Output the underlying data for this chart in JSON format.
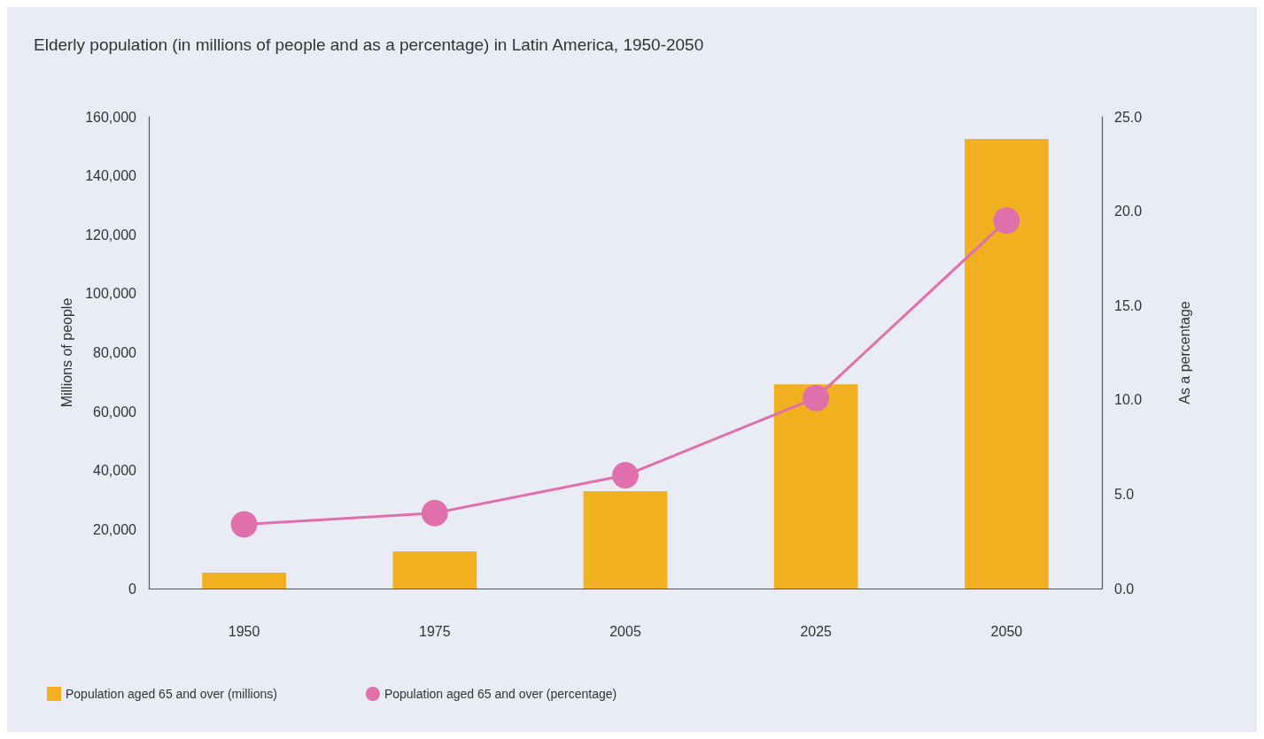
{
  "chart_data": {
    "type": "bar",
    "title": "Elderly population (in millions of people and as a percentage) in Latin America, 1950-2050",
    "categories": [
      "1950",
      "1975",
      "2005",
      "2025",
      "2050"
    ],
    "series": [
      {
        "name": "Population aged 65 and over (millions)",
        "color": "#f0b020",
        "values": [
          5400,
          12600,
          33000,
          69300,
          152500
        ]
      },
      {
        "name": "Population aged 65 and over (percentage)",
        "type": "line",
        "axis": "y2",
        "color": "#e070ac",
        "marker": "circle",
        "values": [
          3.4,
          4.0,
          6.0,
          10.1,
          19.5
        ]
      }
    ],
    "ylabel": "Millions of people",
    "y2label": "As a percentage",
    "ylim": [
      0,
      160000
    ],
    "yticks": [
      {
        "value": 0,
        "label": "0"
      },
      {
        "value": 20000,
        "label": "20,000"
      },
      {
        "value": 40000,
        "label": "40,000"
      },
      {
        "value": 60000,
        "label": "60,000"
      },
      {
        "value": 80000,
        "label": "80,000"
      },
      {
        "value": 100000,
        "label": "100,000"
      },
      {
        "value": 120000,
        "label": "120,000"
      },
      {
        "value": 140000,
        "label": "140,000"
      },
      {
        "value": 160000,
        "label": "160,000"
      }
    ],
    "y2lim": [
      0,
      25
    ],
    "y2ticks": [
      {
        "value": 0,
        "label": "0.0"
      },
      {
        "value": 5,
        "label": "5.0"
      },
      {
        "value": 10,
        "label": "10.0"
      },
      {
        "value": 15,
        "label": "15.0"
      },
      {
        "value": 20,
        "label": "20.0"
      },
      {
        "value": 25,
        "label": "25.0"
      }
    ],
    "grid": false,
    "legend": "bottom left"
  }
}
